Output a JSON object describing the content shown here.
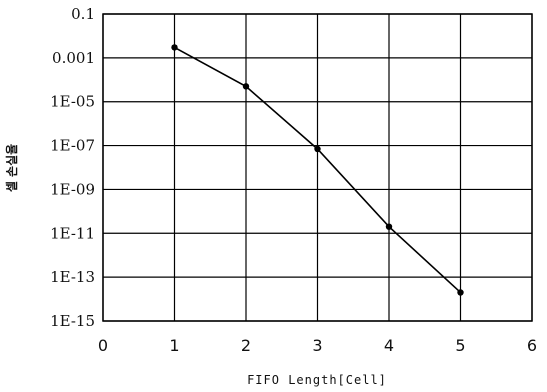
{
  "chart_data": {
    "type": "line",
    "xlabel": "FIFO Length[Cell]",
    "ylabel": "셀 손실율",
    "x_ticks": [
      "0",
      "1",
      "2",
      "3",
      "4",
      "5",
      "6"
    ],
    "y_ticks": [
      "1E-15",
      "1E-13",
      "1E-11",
      "1E-09",
      "1E-07",
      "1E-05",
      "0.001",
      "0.1"
    ],
    "xlim": [
      0,
      6
    ],
    "ylim": [
      1e-15,
      0.1
    ],
    "y_scale": "log",
    "grid": true,
    "series": [
      {
        "x": [
          1,
          2,
          3,
          4,
          5
        ],
        "y": [
          0.003,
          5e-05,
          7e-08,
          2e-11,
          2e-14
        ],
        "color": "#000000"
      }
    ]
  }
}
